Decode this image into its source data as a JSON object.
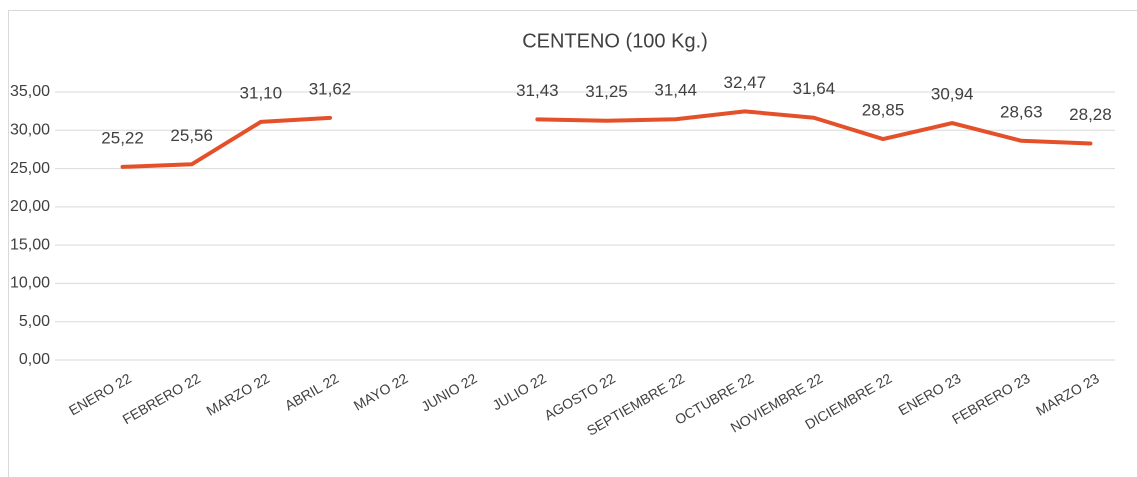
{
  "chart_data": {
    "type": "line",
    "title": "CENTENO (100 Kg.)",
    "categories": [
      "ENERO 22",
      "FEBRERO 22",
      "MARZO 22",
      "ABRIL 22",
      "MAYO 22",
      "JUNIO 22",
      "JULIO 22",
      "AGOSTO 22",
      "SEPTIEMBRE 22",
      "OCTUBRE 22",
      "NOVIEMBRE 22",
      "DICIEMBRE 22",
      "ENERO 23",
      "FEBRERO 23",
      "MARZO 23"
    ],
    "series": [
      {
        "color": "#e4502a",
        "values": [
          25.22,
          25.56,
          31.1,
          31.62,
          null,
          null,
          31.43,
          31.25,
          31.44,
          32.47,
          31.64,
          28.85,
          30.94,
          28.63,
          28.28
        ],
        "value_labels": [
          "25,22",
          "25,56",
          "31,10",
          "31,62",
          null,
          null,
          "31,43",
          "31,25",
          "31,44",
          "32,47",
          "31,64",
          "28,85",
          "30,94",
          "28,63",
          "28,28"
        ]
      }
    ],
    "ylim": [
      0,
      35
    ],
    "yticks": [
      {
        "value": 0,
        "label": "0,00"
      },
      {
        "value": 5,
        "label": "5,00"
      },
      {
        "value": 10,
        "label": "10,00"
      },
      {
        "value": 15,
        "label": "15,00"
      },
      {
        "value": 20,
        "label": "20,00"
      },
      {
        "value": 25,
        "label": "25,00"
      },
      {
        "value": 30,
        "label": "30,00"
      },
      {
        "value": 35,
        "label": "35,00"
      }
    ],
    "grid": true
  }
}
